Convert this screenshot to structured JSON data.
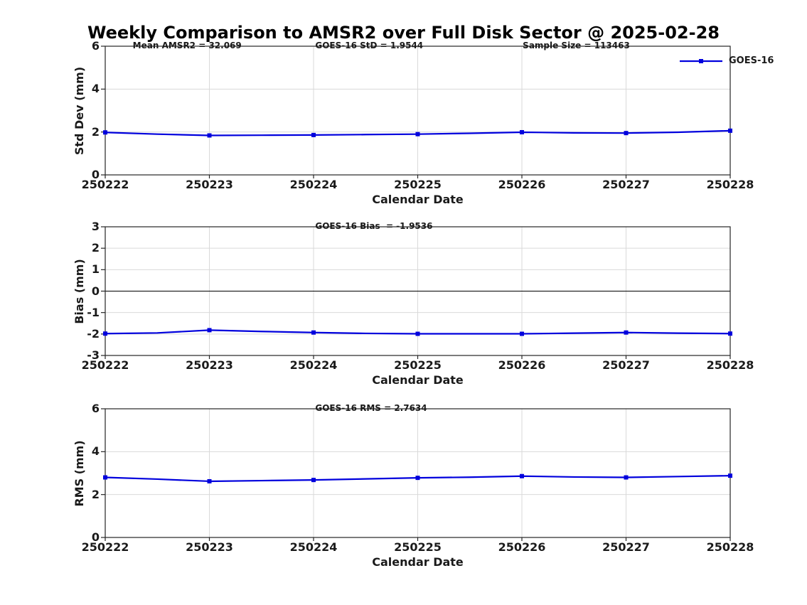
{
  "figure": {
    "title": "Weekly Comparison to AMSR2 over Full Disk Sector @ 2025-02-28",
    "background": "#ffffff"
  },
  "legend": {
    "label": "GOES-16"
  },
  "colors": {
    "line": "#0000dd",
    "grid": "#d9d9d9",
    "axis": "#262626",
    "text": "#1a1a1a",
    "zero_line": "#000000",
    "title_text": "#000000"
  },
  "chart_data": [
    {
      "type": "line",
      "panel": "std-dev",
      "ylabel": "Std Dev (mm)",
      "xlabel": "Calendar Date",
      "ylim": [
        0,
        6
      ],
      "yticks": [
        0,
        2,
        4,
        6
      ],
      "x_categories": [
        "250222",
        "250223",
        "250224",
        "250225",
        "250226",
        "250227",
        "250228"
      ],
      "grid": true,
      "zero_line": false,
      "legend_position": "top-right",
      "annotations": [
        {
          "text": "Mean AMSR2 = 32.069",
          "xfrac": 0.044
        },
        {
          "text": "GOES-16 StD = 1.9544",
          "xfrac": 0.336
        },
        {
          "text": "Sample Size = 113463",
          "xfrac": 0.668
        }
      ],
      "series": [
        {
          "name": "GOES-16",
          "x": [
            0,
            0.5,
            1,
            1.5,
            2,
            2.5,
            3,
            3.5,
            4,
            4.5,
            5,
            5.5,
            6
          ],
          "values": [
            1.98,
            1.9,
            1.84,
            1.85,
            1.86,
            1.88,
            1.9,
            1.94,
            1.99,
            1.96,
            1.95,
            1.99,
            2.06
          ],
          "marker": "square",
          "daily_values": [
            1.98,
            1.84,
            1.86,
            1.9,
            1.99,
            1.95,
            2.06
          ]
        }
      ]
    },
    {
      "type": "line",
      "panel": "bias",
      "ylabel": "Bias (mm)",
      "xlabel": "Calendar Date",
      "ylim": [
        -3,
        3
      ],
      "yticks": [
        -3,
        -2,
        -1,
        0,
        1,
        2,
        3
      ],
      "x_categories": [
        "250222",
        "250223",
        "250224",
        "250225",
        "250226",
        "250227",
        "250228"
      ],
      "grid": true,
      "zero_line": true,
      "annotations": [
        {
          "text": "GOES-16 Bias  = -1.9536",
          "xfrac": 0.336
        }
      ],
      "series": [
        {
          "name": "GOES-16",
          "x": [
            0,
            0.5,
            1,
            1.5,
            2,
            2.5,
            3,
            3.5,
            4,
            4.5,
            5,
            5.5,
            6
          ],
          "values": [
            -1.98,
            -1.95,
            -1.82,
            -1.88,
            -1.93,
            -1.97,
            -1.99,
            -1.99,
            -1.99,
            -1.96,
            -1.93,
            -1.96,
            -1.98
          ],
          "marker": "square",
          "daily_values": [
            -1.98,
            -1.82,
            -1.93,
            -1.99,
            -1.99,
            -1.93,
            -1.98
          ]
        }
      ]
    },
    {
      "type": "line",
      "panel": "rms",
      "ylabel": "RMS (mm)",
      "xlabel": "Calendar Date",
      "ylim": [
        0,
        6
      ],
      "yticks": [
        0,
        2,
        4,
        6
      ],
      "x_categories": [
        "250222",
        "250223",
        "250224",
        "250225",
        "250226",
        "250227",
        "250228"
      ],
      "grid": true,
      "zero_line": false,
      "annotations": [
        {
          "text": "GOES-16 RMS = 2.7634",
          "xfrac": 0.336
        }
      ],
      "series": [
        {
          "name": "GOES-16",
          "x": [
            0,
            0.5,
            1,
            1.5,
            2,
            2.5,
            3,
            3.5,
            4,
            4.5,
            5,
            5.5,
            6
          ],
          "values": [
            2.8,
            2.72,
            2.62,
            2.65,
            2.68,
            2.73,
            2.78,
            2.81,
            2.86,
            2.82,
            2.8,
            2.84,
            2.88
          ],
          "marker": "square",
          "daily_values": [
            2.8,
            2.62,
            2.68,
            2.78,
            2.86,
            2.8,
            2.88
          ]
        }
      ]
    }
  ]
}
